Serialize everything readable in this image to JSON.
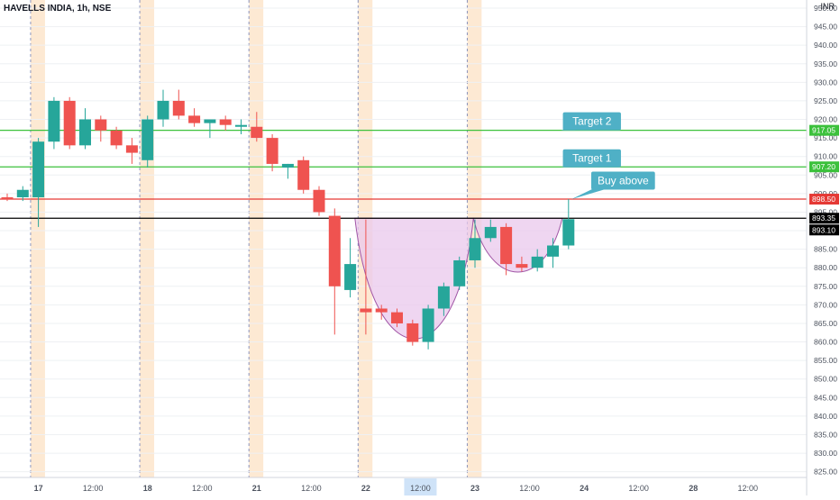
{
  "header": {
    "title": "HAVELLS INDIA, 1h, NSE",
    "unit": "INR"
  },
  "colors": {
    "up": "#26a69a",
    "down": "#ef5350",
    "green_line": "#3cc13c",
    "red_line": "#e53935",
    "black_line": "#000000",
    "session": "#fde9d3",
    "pattern_fill": "#e9c8ec",
    "pattern_stroke": "#a156a6",
    "callout": "#4fb0c6",
    "grid": "#eef0f3"
  },
  "chart_data": {
    "type": "candlestick",
    "title": "HAVELLS INDIA, 1h, NSE",
    "y_unit": "INR",
    "ylim": [
      822,
      950
    ],
    "y_ticks": [
      825,
      830,
      835,
      840,
      845,
      850,
      855,
      860,
      865,
      870,
      875,
      880,
      885,
      890,
      895,
      900,
      905,
      910,
      915,
      920,
      925,
      930,
      935,
      940,
      945,
      950
    ],
    "y_tick_labels": [
      "825.00",
      "830.00",
      "835.00",
      "840.00",
      "845.00",
      "850.00",
      "855.00",
      "860.00",
      "865.00",
      "870.00",
      "875.00",
      "880.00",
      "885.00",
      "890.00",
      "895.00",
      "900.00",
      "905.00",
      "910.00",
      "915.00",
      "920.00",
      "925.00",
      "930.00",
      "935.00",
      "940.00",
      "945.00",
      "950.00"
    ],
    "x_ticks": [
      {
        "i": 2,
        "label": "17",
        "bold": true
      },
      {
        "i": 5.5,
        "label": "12:00",
        "bold": false
      },
      {
        "i": 9,
        "label": "18",
        "bold": true
      },
      {
        "i": 12.5,
        "label": "12:00",
        "bold": false
      },
      {
        "i": 16,
        "label": "21",
        "bold": true
      },
      {
        "i": 19.5,
        "label": "12:00",
        "bold": false
      },
      {
        "i": 23,
        "label": "22",
        "bold": true
      },
      {
        "i": 26.5,
        "label": "12:00",
        "bold": false,
        "highlight": true
      },
      {
        "i": 30,
        "label": "23",
        "bold": true
      },
      {
        "i": 33.5,
        "label": "12:00",
        "bold": false
      },
      {
        "i": 37,
        "label": "24",
        "bold": true
      },
      {
        "i": 40.5,
        "label": "12:00",
        "bold": false
      },
      {
        "i": 44,
        "label": "28",
        "bold": true
      },
      {
        "i": 47.5,
        "label": "12:00",
        "bold": false
      }
    ],
    "candles": [
      {
        "o": 899,
        "h": 900,
        "l": 898,
        "c": 898.5
      },
      {
        "o": 899,
        "h": 902,
        "l": 898,
        "c": 901
      },
      {
        "o": 899,
        "h": 915,
        "l": 891,
        "c": 914
      },
      {
        "o": 914,
        "h": 926,
        "l": 912,
        "c": 925
      },
      {
        "o": 925,
        "h": 926,
        "l": 912,
        "c": 913
      },
      {
        "o": 913,
        "h": 923,
        "l": 912,
        "c": 920
      },
      {
        "o": 920,
        "h": 921,
        "l": 914,
        "c": 917
      },
      {
        "o": 917,
        "h": 918,
        "l": 912,
        "c": 913
      },
      {
        "o": 913,
        "h": 915,
        "l": 908,
        "c": 911
      },
      {
        "o": 909,
        "h": 921,
        "l": 907,
        "c": 920
      },
      {
        "o": 920,
        "h": 928,
        "l": 918,
        "c": 925
      },
      {
        "o": 925,
        "h": 928,
        "l": 920,
        "c": 921
      },
      {
        "o": 921,
        "h": 923,
        "l": 918,
        "c": 919
      },
      {
        "o": 919,
        "h": 920,
        "l": 915,
        "c": 920
      },
      {
        "o": 920,
        "h": 921,
        "l": 917,
        "c": 918.5
      },
      {
        "o": 918,
        "h": 920,
        "l": 916,
        "c": 918.5
      },
      {
        "o": 918,
        "h": 922,
        "l": 914,
        "c": 915
      },
      {
        "o": 915,
        "h": 916,
        "l": 906,
        "c": 908
      },
      {
        "o": 907,
        "h": 908,
        "l": 904,
        "c": 908
      },
      {
        "o": 909,
        "h": 910,
        "l": 900,
        "c": 901
      },
      {
        "o": 901,
        "h": 902,
        "l": 894,
        "c": 895
      },
      {
        "o": 894,
        "h": 896,
        "l": 862,
        "c": 875
      },
      {
        "o": 874,
        "h": 888,
        "l": 872,
        "c": 881
      },
      {
        "o": 869,
        "h": 893,
        "l": 862,
        "c": 868
      },
      {
        "o": 869,
        "h": 870,
        "l": 866,
        "c": 868
      },
      {
        "o": 868,
        "h": 869,
        "l": 864,
        "c": 865
      },
      {
        "o": 865,
        "h": 866,
        "l": 859,
        "c": 860
      },
      {
        "o": 860,
        "h": 870,
        "l": 858,
        "c": 869
      },
      {
        "o": 869,
        "h": 876,
        "l": 867,
        "c": 875
      },
      {
        "o": 875,
        "h": 883,
        "l": 874,
        "c": 882
      },
      {
        "o": 882,
        "h": 893,
        "l": 880,
        "c": 888
      },
      {
        "o": 888,
        "h": 893,
        "l": 887,
        "c": 891
      },
      {
        "o": 891,
        "h": 892,
        "l": 878,
        "c": 881
      },
      {
        "o": 881,
        "h": 883,
        "l": 879,
        "c": 880
      },
      {
        "o": 880,
        "h": 885,
        "l": 879,
        "c": 883
      },
      {
        "o": 883,
        "h": 888,
        "l": 880,
        "c": 886
      },
      {
        "o": 886,
        "h": 898.5,
        "l": 885,
        "c": 893.1
      }
    ],
    "h_lines": [
      {
        "name": "Target 2",
        "value": 917.05,
        "color": "#3cc13c",
        "label": "917.05"
      },
      {
        "name": "Target 1",
        "value": 907.2,
        "color": "#3cc13c",
        "label": "907.20"
      },
      {
        "name": "Buy above",
        "value": 898.5,
        "color": "#e53935",
        "label": "898.50"
      },
      {
        "name": "neckline",
        "value": 893.35,
        "color": "#000000",
        "label": "893.35"
      }
    ],
    "last_price": {
      "value": 893.1,
      "label": "893.10"
    },
    "annotations": [
      {
        "text": "Target 2",
        "anchor_i": 35.5,
        "anchor_y": 917.05,
        "box_i": 37.5,
        "box_y": 919.5
      },
      {
        "text": "Target 1",
        "anchor_i": 35.5,
        "anchor_y": 907.2,
        "box_i": 37.5,
        "box_y": 909.5
      },
      {
        "text": "Buy above",
        "anchor_i": 36.2,
        "anchor_y": 898.5,
        "box_i": 39.5,
        "box_y": 903.5
      }
    ],
    "pattern": {
      "type": "cup and handle",
      "rim": 893.35,
      "cup_low": 857.5,
      "handle_low": 878
    },
    "session_bands_i": [
      1.5,
      8.5,
      15.5,
      22.5,
      29.5
    ],
    "grid": true
  }
}
